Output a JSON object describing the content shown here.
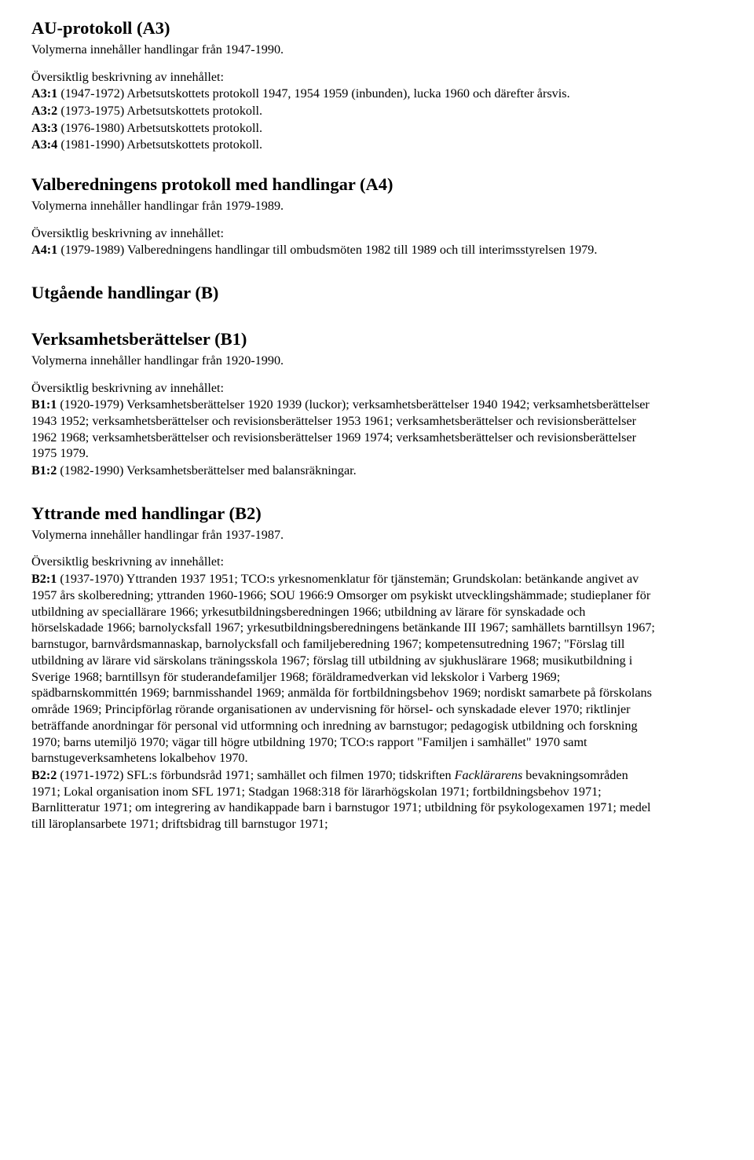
{
  "a3": {
    "title": "AU-protokoll (A3)",
    "vol": "Volymerna innehåller handlingar från 1947-1990.",
    "ov": "Översiktlig beskrivning av innehållet:",
    "items": [
      {
        "label": "A3:1",
        "text": " (1947-1972) Arbetsutskottets protokoll 1947, 1954 1959 (inbunden), lucka 1960 och därefter årsvis."
      },
      {
        "label": "A3:2",
        "text": " (1973-1975) Arbetsutskottets protokoll."
      },
      {
        "label": "A3:3",
        "text": " (1976-1980) Arbetsutskottets protokoll."
      },
      {
        "label": "A3:4",
        "text": " (1981-1990) Arbetsutskottets protokoll."
      }
    ]
  },
  "a4": {
    "title": "Valberedningens protokoll med handlingar (A4)",
    "vol": "Volymerna innehåller handlingar från 1979-1989.",
    "ov": "Översiktlig beskrivning av innehållet:",
    "items": [
      {
        "label": "A4:1",
        "text": " (1979-1989) Valberedningens handlingar till ombudsmöten 1982 till 1989 och till interimsstyrelsen 1979."
      }
    ]
  },
  "b": {
    "title": "Utgående handlingar (B)"
  },
  "b1": {
    "title": "Verksamhetsberättelser (B1)",
    "vol": "Volymerna innehåller handlingar från 1920-1990.",
    "ov": "Översiktlig beskrivning av innehållet:",
    "items": [
      {
        "label": "B1:1",
        "text": " (1920-1979) Verksamhetsberättelser 1920 1939 (luckor); verksamhetsberättelser 1940 1942; verksamhetsberättelser 1943 1952; verksamhetsberättelser och revisionsberättelser 1953 1961; verksamhetsberättelser och revisionsberättelser 1962 1968; verksamhetsberättelser och revisionsberättelser 1969 1974; verksamhetsberättelser och revisionsberättelser 1975 1979."
      },
      {
        "label": "B1:2",
        "text": " (1982-1990) Verksamhetsberättelser med balansräkningar."
      }
    ]
  },
  "b2": {
    "title": "Yttrande med handlingar (B2)",
    "vol": "Volymerna innehåller handlingar från 1937-1987.",
    "ov": "Översiktlig beskrivning av innehållet:",
    "b2_1_label": "B2:1",
    "b2_1_text": " (1937-1970) Yttranden 1937 1951; TCO:s yrkesnomenklatur för tjänstemän; Grundskolan: betänkande angivet av 1957 års skolberedning; yttranden 1960-1966; SOU 1966:9 Omsorger om psykiskt utvecklingshämmade; studieplaner för utbildning av speciallärare 1966; yrkesutbildningsberedningen 1966; utbildning av lärare för synskadade och hörselskadade 1966; barnolycksfall 1967; yrkesutbildningsberedningens betänkande III 1967; samhällets barntillsyn 1967; barnstugor, barnvårdsmannaskap, barnolycksfall och familjeberedning 1967; kompetensutredning 1967; \"Förslag till utbildning av lärare vid särskolans träningsskola 1967; förslag till utbildning av sjukhuslärare 1968; musikutbildning i Sverige 1968; barntillsyn för studerandefamiljer 1968; föräldramedverkan vid lekskolor i Varberg 1969; spädbarnskommittén 1969; barnmisshandel 1969; anmälda för fortbildningsbehov 1969; nordiskt samarbete på förskolans område 1969; Principförlag rörande organisationen av undervisning för hörsel- och synskadade elever 1970; riktlinjer beträffande anordningar för personal vid utformning och inredning av barnstugor; pedagogisk utbildning och forskning 1970; barns utemiljö 1970; vägar till högre utbildning 1970; TCO:s rapport \"Familjen i samhället\" 1970 samt barnstugeverksamhetens lokalbehov 1970.",
    "b2_2_label": "B2:2",
    "b2_2_lead": " (1971-1972) SFL:s förbundsråd 1971; samhället och filmen 1970; tidskriften ",
    "b2_2_italic": "Facklärarens",
    "b2_2_tail": " bevakningsområden 1971; Lokal organisation inom SFL 1971; Stadgan 1968:318 för lärarhögskolan 1971; fortbildningsbehov 1971; Barnlitteratur 1971; om integrering av handikappade barn i barnstugor 1971; utbildning för psykologexamen 1971; medel till läroplansarbete 1971; driftsbidrag till barnstugor 1971;"
  }
}
